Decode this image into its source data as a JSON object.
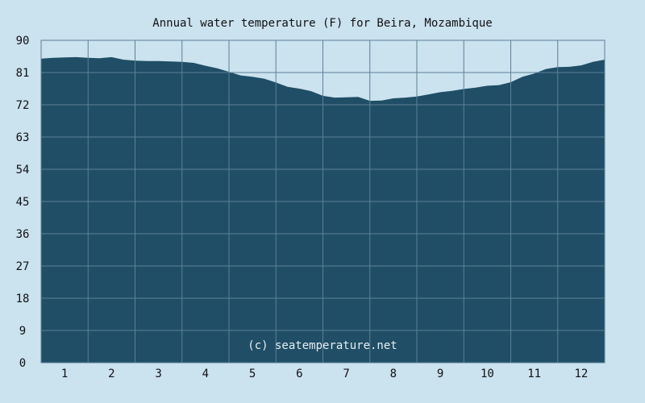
{
  "chart_data": {
    "type": "area",
    "title": "Annual water temperature (F) for Beira, Mozambique",
    "watermark": "(c) seatemperature.net",
    "xlabel": "",
    "ylabel": "",
    "x_tick_labels": [
      "1",
      "2",
      "3",
      "4",
      "5",
      "6",
      "7",
      "8",
      "9",
      "10",
      "11",
      "12"
    ],
    "y_tick_labels": [
      "0",
      "9",
      "18",
      "27",
      "36",
      "45",
      "54",
      "63",
      "72",
      "81",
      "90"
    ],
    "ylim": [
      0,
      90
    ],
    "xlim": [
      0.5,
      12.5
    ],
    "grid": true,
    "colors": {
      "background": "#cbe2ef",
      "fill": "#1f4e66",
      "grid": "#5d8095",
      "plot_bg": "#cbe2ef"
    },
    "series": [
      {
        "x": [
          0.5,
          0.75,
          1.0,
          1.25,
          1.5,
          1.75,
          2.0,
          2.25,
          2.5,
          2.75,
          3.0,
          3.25,
          3.5,
          3.75,
          4.0,
          4.25,
          4.5,
          4.75,
          5.0,
          5.25,
          5.5,
          5.75,
          6.0,
          6.25,
          6.5,
          6.75,
          7.0,
          7.25,
          7.5,
          7.75,
          8.0,
          8.25,
          8.5,
          8.75,
          9.0,
          9.25,
          9.5,
          9.75,
          10.0,
          10.25,
          10.5,
          10.75,
          11.0,
          11.25,
          11.5,
          11.75,
          12.0,
          12.25,
          12.5
        ],
        "values": [
          84.9,
          85.1,
          85.2,
          85.3,
          85.1,
          85.0,
          85.3,
          84.6,
          84.3,
          84.2,
          84.2,
          84.1,
          84.0,
          83.7,
          82.9,
          82.2,
          81.2,
          80.2,
          79.8,
          79.3,
          78.2,
          77.0,
          76.5,
          75.8,
          74.5,
          74.0,
          74.1,
          74.2,
          73.1,
          73.2,
          73.8,
          74.0,
          74.3,
          74.9,
          75.5,
          75.9,
          76.4,
          76.8,
          77.3,
          77.5,
          78.3,
          79.8,
          80.7,
          82.0,
          82.5,
          82.6,
          83.0,
          84.0,
          84.6
        ]
      }
    ]
  }
}
